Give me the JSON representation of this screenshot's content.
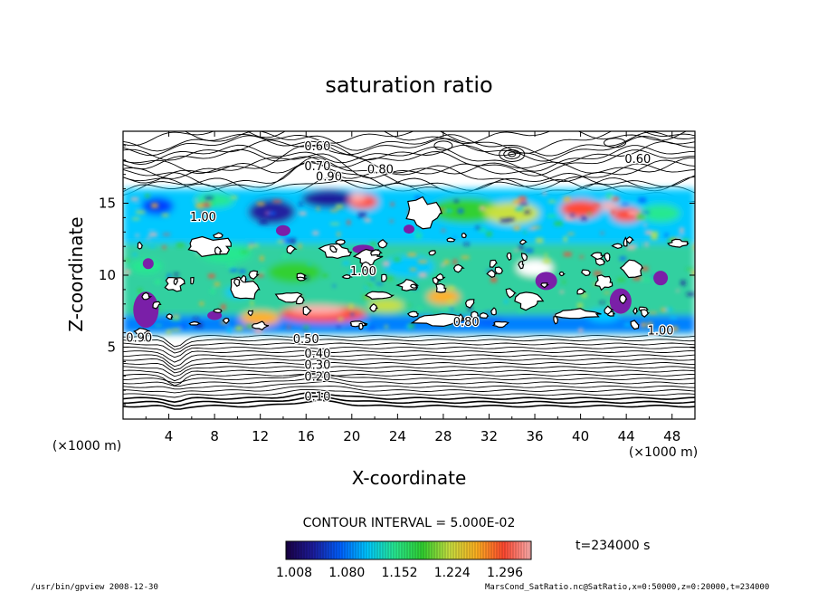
{
  "chart_data": {
    "type": "heatmap",
    "title": "saturation ratio",
    "xlabel": "X-coordinate",
    "ylabel": "Z-coordinate",
    "x_unit": "(×1000 m)",
    "z_unit": "(×1000 m)",
    "xlim": [
      0,
      50
    ],
    "ylim": [
      0,
      20
    ],
    "x_ticks": [
      4,
      8,
      12,
      16,
      20,
      24,
      28,
      32,
      36,
      40,
      44,
      48
    ],
    "y_ticks": [
      5,
      10,
      15
    ],
    "contour_interval_text": "CONTOUR INTERVAL = 5.000E-02",
    "time_text": "t=234000 s",
    "colorbar": {
      "ticks": [
        "1.008",
        "1.080",
        "1.152",
        "1.224",
        "1.296"
      ],
      "colors": [
        "#1a0044",
        "#1c1c9c",
        "#0060ff",
        "#00c8ff",
        "#28e890",
        "#30d030",
        "#c8e040",
        "#ffb020",
        "#ff4830",
        "#ffb0b0"
      ]
    },
    "contour_labels": [
      {
        "text": "0.60",
        "x": 17.0,
        "z": 19.0
      },
      {
        "text": "0.70",
        "x": 17.0,
        "z": 17.6
      },
      {
        "text": "0.80",
        "x": 22.5,
        "z": 17.4
      },
      {
        "text": "0.90",
        "x": 18.0,
        "z": 16.9
      },
      {
        "text": "0.60",
        "x": 45.0,
        "z": 18.1
      },
      {
        "text": "1.00",
        "x": 7.0,
        "z": 14.1
      },
      {
        "text": "1.00",
        "x": 21.0,
        "z": 10.3
      },
      {
        "text": "0.80",
        "x": 30.0,
        "z": 6.8
      },
      {
        "text": "1.00",
        "x": 47.0,
        "z": 6.2
      },
      {
        "text": "0.90",
        "x": 1.4,
        "z": 5.7
      },
      {
        "text": "0.50",
        "x": 16.0,
        "z": 5.6
      },
      {
        "text": "0.40",
        "x": 17.0,
        "z": 4.6
      },
      {
        "text": "0.30",
        "x": 17.0,
        "z": 3.8
      },
      {
        "text": "0.20",
        "x": 17.0,
        "z": 3.0
      },
      {
        "text": "0.10",
        "x": 17.0,
        "z": 1.6
      }
    ]
  },
  "footer": {
    "left": "/usr/bin/gpview   2008-12-30",
    "right": "MarsCond_SatRatio.nc@SatRatio,x=0:50000,z=0:20000,t=234000"
  }
}
